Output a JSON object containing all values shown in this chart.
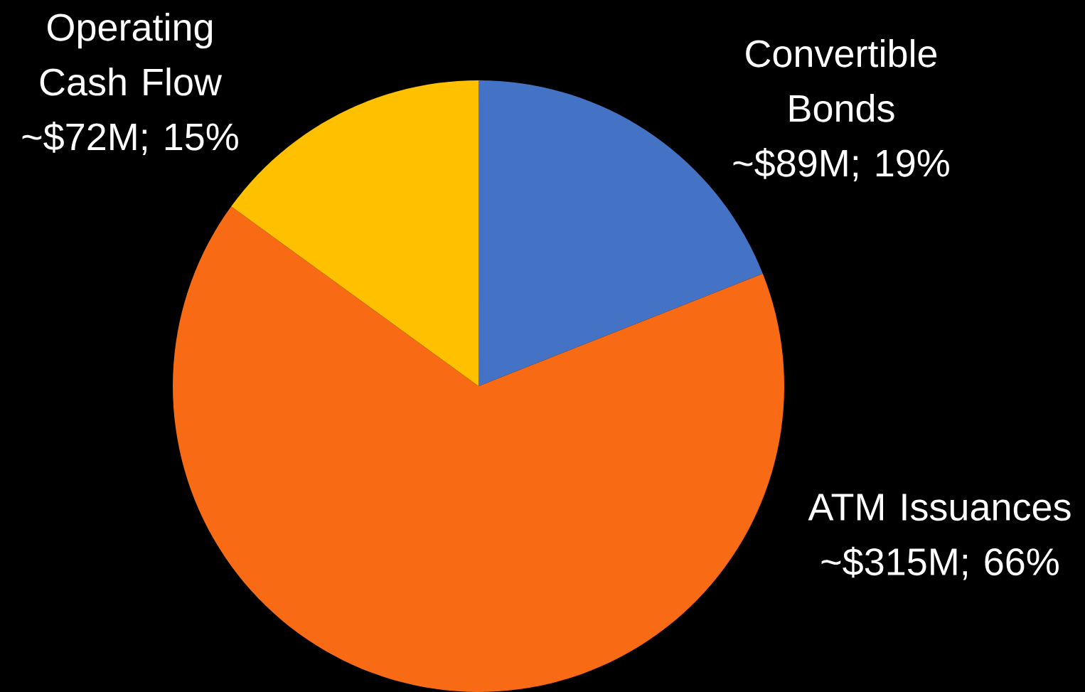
{
  "chart_data": {
    "type": "pie",
    "categories": [
      "Convertible Bonds",
      "ATM Issuances",
      "Operating Cash Flow"
    ],
    "values": [
      19,
      66,
      15
    ],
    "value_labels": [
      "~$89M; 19%",
      "~$315M; 66%",
      "~$72M; 15%"
    ],
    "colors": [
      "#4472c4",
      "#f96a14",
      "#ffc000"
    ]
  }
}
